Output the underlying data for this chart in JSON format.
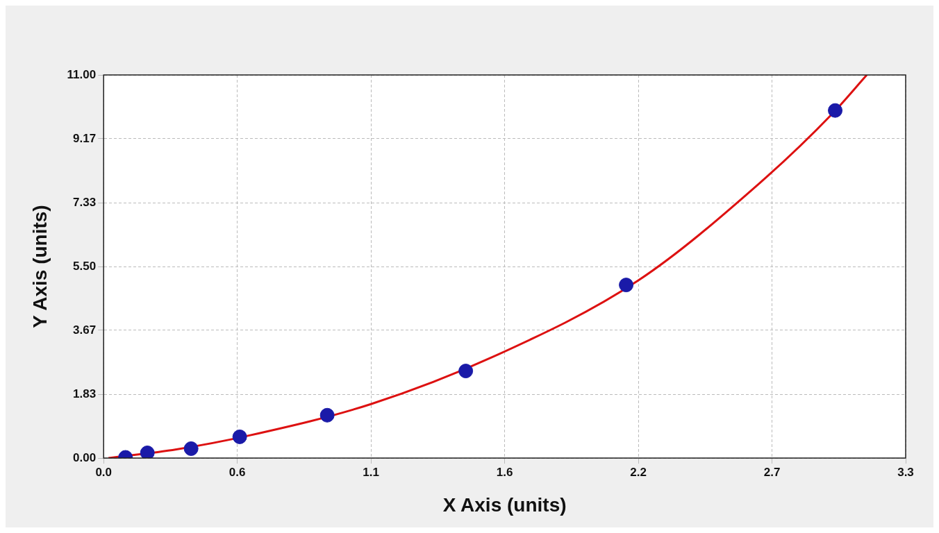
{
  "chart_data": {
    "type": "scatter",
    "xlabel": "X Axis (units)",
    "ylabel": "Y Axis (units)",
    "series": [
      {
        "color": "#1a1aa8",
        "marker": "circle",
        "x": [
          0.09,
          0.18,
          0.36,
          0.56,
          0.92,
          1.49,
          2.15,
          3.01
        ],
        "values": [
          0.02,
          0.15,
          0.27,
          0.61,
          1.23,
          2.5,
          4.97,
          9.98
        ]
      },
      {
        "type": "line",
        "marker": "none",
        "color": "#dd1111",
        "x": [
          0.02,
          0.3,
          0.6,
          1.1,
          1.6,
          2.2,
          2.7,
          3.0,
          3.14
        ],
        "values": [
          0,
          0.25,
          0.65,
          1.55,
          2.9,
          5.1,
          7.9,
          9.9,
          11
        ]
      }
    ],
    "xlim": [
      0,
      3.3
    ],
    "xticks": [
      {
        "value": 0,
        "label": "0.0"
      },
      {
        "value": 0.55,
        "label": "0.6"
      },
      {
        "value": 1.1,
        "label": "1.1"
      },
      {
        "value": 1.65,
        "label": "1.6"
      },
      {
        "value": 2.2,
        "label": "2.2"
      },
      {
        "value": 2.75,
        "label": "2.7"
      },
      {
        "value": 3.3,
        "label": "3.3"
      }
    ],
    "ylim": [
      0,
      11
    ],
    "yticks": [
      {
        "value": 0,
        "label": "0.00"
      },
      {
        "value": 1.8333,
        "label": "1.83"
      },
      {
        "value": 3.6667,
        "label": "3.67"
      },
      {
        "value": 5.5,
        "label": "5.50"
      },
      {
        "value": 7.3333,
        "label": "7.33"
      },
      {
        "value": 9.1667,
        "label": "9.17"
      },
      {
        "value": 11,
        "label": "11.00"
      }
    ],
    "grid": true,
    "legend": false
  }
}
